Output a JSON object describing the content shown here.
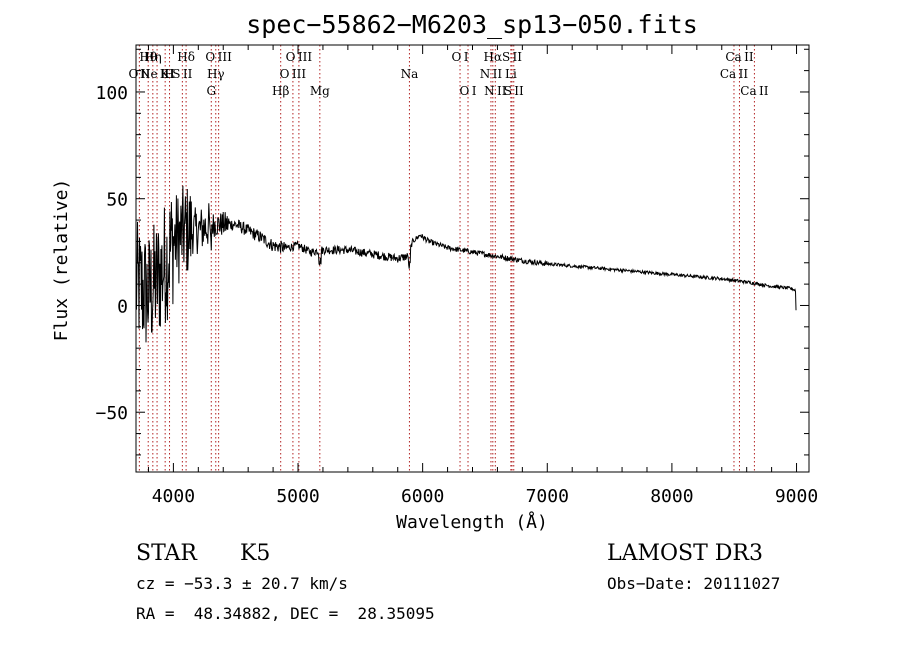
{
  "chart_data": {
    "type": "line",
    "title": "spec−55862−M6203_sp13−050.fits",
    "xlabel": "Wavelength (Å)",
    "ylabel": "Flux (relative)",
    "xlim": [
      3700,
      9100
    ],
    "ylim": [
      -78,
      122
    ],
    "x_ticks": [
      4000,
      5000,
      6000,
      7000,
      8000,
      9000
    ],
    "y_ticks": [
      {
        "value": -50,
        "label": "−50"
      },
      {
        "value": 0,
        "label": "0"
      },
      {
        "value": 50,
        "label": "50"
      },
      {
        "value": 100,
        "label": "100"
      }
    ],
    "spectrum_anchor_points": [
      {
        "x": 3700,
        "y": 10
      },
      {
        "x": 3800,
        "y": 5
      },
      {
        "x": 3900,
        "y": 15
      },
      {
        "x": 4000,
        "y": 30
      },
      {
        "x": 4100,
        "y": 35
      },
      {
        "x": 4200,
        "y": 35
      },
      {
        "x": 4300,
        "y": 38
      },
      {
        "x": 4400,
        "y": 38
      },
      {
        "x": 4500,
        "y": 38
      },
      {
        "x": 4600,
        "y": 35
      },
      {
        "x": 4700,
        "y": 32
      },
      {
        "x": 4800,
        "y": 28
      },
      {
        "x": 4900,
        "y": 27
      },
      {
        "x": 5000,
        "y": 28
      },
      {
        "x": 5100,
        "y": 25
      },
      {
        "x": 5200,
        "y": 26
      },
      {
        "x": 5300,
        "y": 26
      },
      {
        "x": 5400,
        "y": 26
      },
      {
        "x": 5500,
        "y": 25
      },
      {
        "x": 5600,
        "y": 24
      },
      {
        "x": 5700,
        "y": 23
      },
      {
        "x": 5800,
        "y": 22
      },
      {
        "x": 5880,
        "y": 23
      },
      {
        "x": 5920,
        "y": 30
      },
      {
        "x": 5980,
        "y": 33
      },
      {
        "x": 6050,
        "y": 30
      },
      {
        "x": 6200,
        "y": 27
      },
      {
        "x": 6400,
        "y": 25
      },
      {
        "x": 6600,
        "y": 23
      },
      {
        "x": 6800,
        "y": 21
      },
      {
        "x": 7000,
        "y": 19.5
      },
      {
        "x": 7200,
        "y": 18.5
      },
      {
        "x": 7400,
        "y": 17.5
      },
      {
        "x": 7600,
        "y": 16.5
      },
      {
        "x": 7800,
        "y": 15.5
      },
      {
        "x": 8000,
        "y": 14.5
      },
      {
        "x": 8200,
        "y": 13.5
      },
      {
        "x": 8400,
        "y": 12.5
      },
      {
        "x": 8600,
        "y": 11
      },
      {
        "x": 8800,
        "y": 9
      },
      {
        "x": 8950,
        "y": 8
      },
      {
        "x": 9000,
        "y": 7
      }
    ],
    "emission_lines": [
      {
        "label": "O II",
        "wavelength": 3727,
        "row": 2
      },
      {
        "label": "Hθ",
        "wavelength": 3798,
        "row": 1
      },
      {
        "label": "Hη",
        "wavelength": 3835,
        "row": 1
      },
      {
        "label": "K",
        "wavelength": 3934,
        "row": 2
      },
      {
        "label": "H",
        "wavelength": 3969,
        "row": 2
      },
      {
        "label": "Ne III",
        "wavelength": 3869,
        "row": 2
      },
      {
        "label": "Hδ",
        "wavelength": 4102,
        "row": 1
      },
      {
        "label": "S II",
        "wavelength": 4072,
        "row": 2
      },
      {
        "label": "O III",
        "wavelength": 4363,
        "row": 1
      },
      {
        "label": "Hγ",
        "wavelength": 4340,
        "row": 2
      },
      {
        "label": "G",
        "wavelength": 4304,
        "row": 3
      },
      {
        "label": "Hβ",
        "wavelength": 4861,
        "row": 3
      },
      {
        "label": "O III",
        "wavelength": 5007,
        "row": 1
      },
      {
        "label": "O III",
        "wavelength": 4959,
        "row": 2
      },
      {
        "label": "Mg",
        "wavelength": 5175,
        "row": 3
      },
      {
        "label": "Na",
        "wavelength": 5894,
        "row": 2
      },
      {
        "label": "O I",
        "wavelength": 6300,
        "row": 1
      },
      {
        "label": "O I",
        "wavelength": 6364,
        "row": 3
      },
      {
        "label": "Hα",
        "wavelength": 6563,
        "row": 1
      },
      {
        "label": "N II",
        "wavelength": 6548,
        "row": 2
      },
      {
        "label": "N II",
        "wavelength": 6583,
        "row": 3
      },
      {
        "label": "S II",
        "wavelength": 6717,
        "row": 1
      },
      {
        "label": "Li",
        "wavelength": 6708,
        "row": 2
      },
      {
        "label": "S II",
        "wavelength": 6731,
        "row": 3
      },
      {
        "label": "Ca II",
        "wavelength": 8542,
        "row": 1
      },
      {
        "label": "Ca II",
        "wavelength": 8498,
        "row": 2
      },
      {
        "label": "Ca II",
        "wavelength": 8662,
        "row": 3
      }
    ]
  },
  "info": {
    "object_class": "STAR",
    "subclass": "K5",
    "survey": "LAMOST DR3",
    "redshift": "cz = −53.3 ± 20.7 km/s",
    "obs_date": "Obs−Date: 20111027",
    "coords": "RA =  48.34882, DEC =  28.35095"
  },
  "colors": {
    "line_marker": "#b22222",
    "spectrum": "#000000",
    "axes": "#000000"
  }
}
